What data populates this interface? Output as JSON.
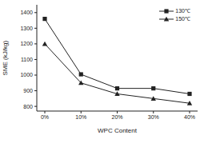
{
  "chart_data": {
    "type": "line",
    "x_label": "WPC Content",
    "y_label": "SME (kJ/kg)",
    "categories": [
      "0%",
      "10%",
      "20%",
      "30%",
      "40%"
    ],
    "series": [
      {
        "name": "130℃",
        "color": "#222222",
        "marker": "square",
        "values": [
          1360,
          1005,
          915,
          915,
          880
        ]
      },
      {
        "name": "150℃",
        "color": "#222222",
        "marker": "triangle",
        "values": [
          1200,
          950,
          880,
          850,
          820
        ]
      }
    ],
    "ylim": [
      770,
      1450
    ],
    "yticks": [
      800,
      900,
      1000,
      1100,
      1200,
      1300,
      1400
    ],
    "legend": "upper right"
  }
}
